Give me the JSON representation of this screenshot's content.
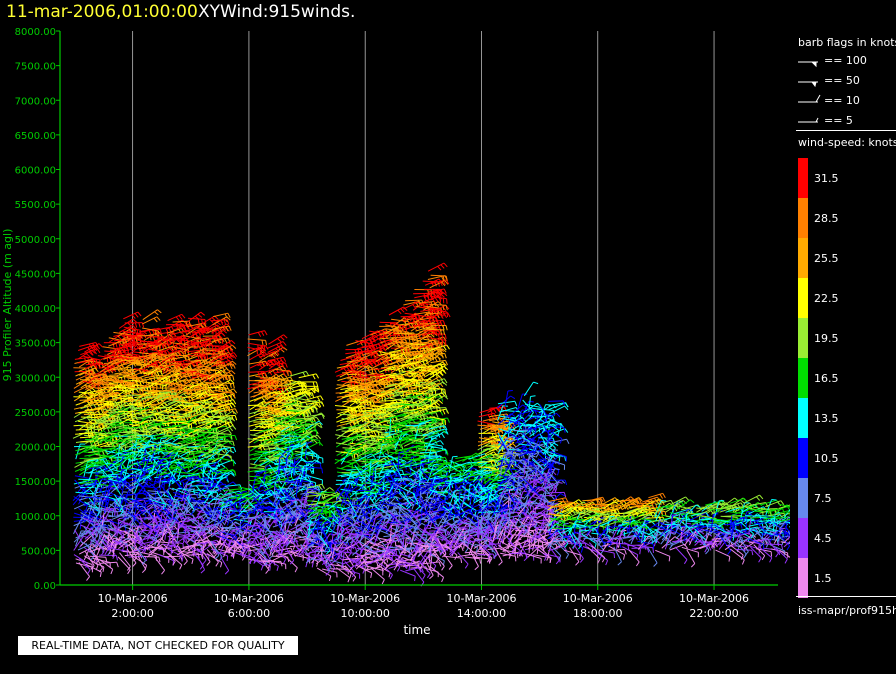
{
  "header": {
    "datetime": "11-mar-2006,01:00:00",
    "title": "XYWind:915winds."
  },
  "notice": "REAL-TIME DATA, NOT CHECKED FOR QUALITY",
  "colors": {
    "axis": "#00cc00",
    "grid": "#bbbbbb",
    "background": "#000000"
  },
  "chart_data": {
    "type": "scatter",
    "mark": "wind-barb",
    "xlabel": "time",
    "ylabel": "915 Profiler Altitude (m agl)",
    "ylim": [
      0,
      8000
    ],
    "y_ticks": [
      "0.00",
      "500.00",
      "1000.00",
      "1500.00",
      "2000.00",
      "2500.00",
      "3000.00",
      "3500.00",
      "4000.00",
      "4500.00",
      "5000.00",
      "5500.00",
      "6000.00",
      "6500.00",
      "7000.00",
      "7500.00",
      "8000.00"
    ],
    "xlim": [
      "10-Mar-2006 00:00",
      "11-Mar-2006 01:00"
    ],
    "x_ticks": [
      {
        "date": "10-Mar-2006",
        "time": "2:00:00",
        "hour": 2
      },
      {
        "date": "10-Mar-2006",
        "time": "6:00:00",
        "hour": 6
      },
      {
        "date": "10-Mar-2006",
        "time": "10:00:00",
        "hour": 10
      },
      {
        "date": "10-Mar-2006",
        "time": "14:00:00",
        "hour": 14
      },
      {
        "date": "10-Mar-2006",
        "time": "18:00:00",
        "hour": 18
      },
      {
        "date": "10-Mar-2006",
        "time": "22:00:00",
        "hour": 22
      }
    ],
    "grid": "vertical",
    "series_profiles": [
      {
        "hour_start": 0.0,
        "hour_end": 1.0,
        "alt_low": 300,
        "alt_high": 3800,
        "max_speed": 31.5
      },
      {
        "hour_start": 1.0,
        "hour_end": 3.2,
        "alt_low": 400,
        "alt_high": 4100,
        "max_speed": 31.5
      },
      {
        "hour_start": 3.2,
        "hour_end": 5.0,
        "alt_low": 400,
        "alt_high": 3900,
        "max_speed": 31.5
      },
      {
        "hour_start": 5.0,
        "hour_end": 6.0,
        "alt_low": 400,
        "alt_high": 1500,
        "max_speed": 16.5
      },
      {
        "hour_start": 6.0,
        "hour_end": 6.9,
        "alt_low": 300,
        "alt_high": 3700,
        "max_speed": 31.5
      },
      {
        "hour_start": 6.9,
        "hour_end": 8.0,
        "alt_low": 400,
        "alt_high": 3100,
        "max_speed": 22.5
      },
      {
        "hour_start": 8.0,
        "hour_end": 9.0,
        "alt_low": 200,
        "alt_high": 1500,
        "max_speed": 19.5
      },
      {
        "hour_start": 9.0,
        "hour_end": 10.5,
        "alt_low": 200,
        "alt_high": 3800,
        "max_speed": 31.5
      },
      {
        "hour_start": 10.5,
        "hour_end": 12.2,
        "alt_low": 200,
        "alt_high": 4600,
        "max_speed": 31.5
      },
      {
        "hour_start": 12.2,
        "hour_end": 13.9,
        "alt_low": 400,
        "alt_high": 1900,
        "max_speed": 16.5
      },
      {
        "hour_start": 13.9,
        "hour_end": 14.6,
        "alt_low": 500,
        "alt_high": 2900,
        "max_speed": 31.5
      },
      {
        "hour_start": 14.6,
        "hour_end": 16.3,
        "alt_low": 400,
        "alt_high": 2800,
        "max_speed": 13.5
      },
      {
        "hour_start": 16.3,
        "hour_end": 19.8,
        "alt_low": 500,
        "alt_high": 1300,
        "max_speed": 28.5
      },
      {
        "hour_start": 20.0,
        "hour_end": 24.6,
        "alt_low": 500,
        "alt_high": 1200,
        "max_speed": 19.5
      }
    ]
  },
  "legend": {
    "barb_title": "barb flags in knots",
    "barbs": [
      "== 100",
      "== 50",
      "== 10",
      "== 5"
    ],
    "speed_title": "wind-speed: knots",
    "speeds": [
      {
        "label": "31.5",
        "color": "#ff0000"
      },
      {
        "label": "28.5",
        "color": "#ff8000"
      },
      {
        "label": "25.5",
        "color": "#ffaa00"
      },
      {
        "label": "22.5",
        "color": "#ffff00"
      },
      {
        "label": "19.5",
        "color": "#99ee33"
      },
      {
        "label": "16.5",
        "color": "#00dd00"
      },
      {
        "label": "13.5",
        "color": "#00ffff"
      },
      {
        "label": "10.5",
        "color": "#0000ff"
      },
      {
        "label": "7.5",
        "color": "#6688ee"
      },
      {
        "label": "4.5",
        "color": "#9933ff"
      },
      {
        "label": "1.5",
        "color": "#ee88ee"
      }
    ],
    "source": "iss-mapr/prof915h"
  }
}
